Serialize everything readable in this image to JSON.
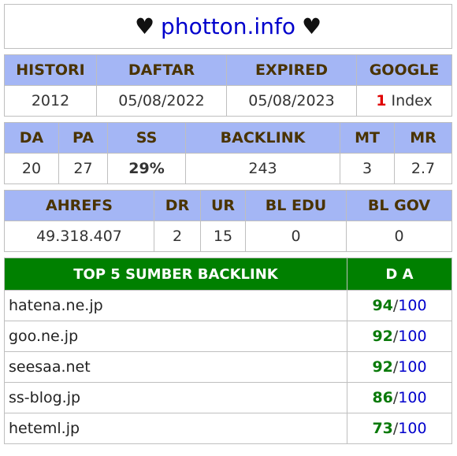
{
  "title": {
    "heart_left": "♥",
    "domain": "photton.info",
    "heart_right": "♥"
  },
  "table1": {
    "headers": [
      "HISTORI",
      "DAFTAR",
      "EXPIRED",
      "GOOGLE"
    ],
    "values": [
      "2012",
      "05/08/2022",
      "05/08/2023"
    ],
    "google_count": "1",
    "google_label": " Index"
  },
  "table2": {
    "headers": [
      "DA",
      "PA",
      "SS",
      "BACKLINK",
      "MT",
      "MR"
    ],
    "values": [
      "20",
      "27",
      "29%",
      "243",
      "3",
      "2.7"
    ]
  },
  "table3": {
    "headers": [
      "AHREFS",
      "DR",
      "UR",
      "BL EDU",
      "BL GOV"
    ],
    "values": [
      "49.318.407",
      "2",
      "15",
      "0",
      "0"
    ]
  },
  "backlinks": {
    "header_source": "TOP 5 SUMBER BACKLINK",
    "header_da": "D A",
    "max": "100",
    "rows": [
      {
        "domain": "hatena.ne.jp",
        "da": "94"
      },
      {
        "domain": "goo.ne.jp",
        "da": "92"
      },
      {
        "domain": "seesaa.net",
        "da": "92"
      },
      {
        "domain": "ss-blog.jp",
        "da": "86"
      },
      {
        "domain": "heteml.jp",
        "da": "73"
      }
    ]
  },
  "colors": {
    "header_bg": "#a4b6f5",
    "green_header": "#008000",
    "domain_blue": "#0000cc",
    "red": "#e00000",
    "cyan": "#22c4c4"
  }
}
